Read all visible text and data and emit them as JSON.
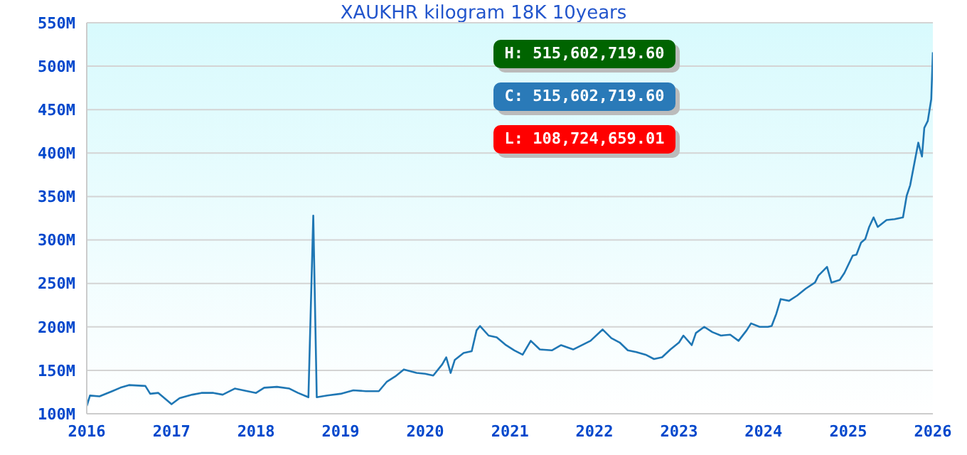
{
  "chart_data": {
    "type": "line",
    "title": "XAUKHR kilogram 18K 10years",
    "annotations": [
      "H: 515,602,719.60",
      "C: 515,602,719.60",
      "L: 108,724,659.01"
    ],
    "x": [
      "2016-01-01",
      "2016-01-15",
      "2016-02-25",
      "2016-04-20",
      "2016-05-25",
      "2016-07-01",
      "2016-09-10",
      "2016-10-01",
      "2016-11-05",
      "2016-12-15",
      "2017-01-01",
      "2017-02-05",
      "2017-04-01",
      "2017-05-10",
      "2017-07-01",
      "2017-08-10",
      "2017-10-01",
      "2017-11-25",
      "2018-01-01",
      "2018-02-05",
      "2018-04-01",
      "2018-05-25",
      "2018-07-01",
      "2018-08-15",
      "2018-09-05",
      "2018-09-20",
      "2018-11-05",
      "2019-01-01",
      "2019-02-25",
      "2019-04-20",
      "2019-06-15",
      "2019-07-20",
      "2019-08-25",
      "2019-10-01",
      "2019-11-25",
      "2020-01-01",
      "2020-02-05",
      "2020-03-15",
      "2020-04-01",
      "2020-04-20",
      "2020-05-08",
      "2020-06-15",
      "2020-07-20",
      "2020-08-10",
      "2020-08-25",
      "2020-10-01",
      "2020-11-05",
      "2020-12-15",
      "2021-01-20",
      "2021-02-25",
      "2021-04-01",
      "2021-05-10",
      "2021-07-01",
      "2021-08-10",
      "2021-10-01",
      "2021-12-15",
      "2022-02-05",
      "2022-03-15",
      "2022-04-20",
      "2022-05-25",
      "2022-07-01",
      "2022-08-10",
      "2022-09-15",
      "2022-10-20",
      "2022-11-25",
      "2023-01-01",
      "2023-01-20",
      "2023-02-25",
      "2023-03-15",
      "2023-04-20",
      "2023-05-25",
      "2023-07-01",
      "2023-08-10",
      "2023-09-15",
      "2023-10-20",
      "2023-11-08",
      "2023-12-15",
      "2024-01-20",
      "2024-02-05",
      "2024-02-25",
      "2024-03-15",
      "2024-04-20",
      "2024-05-25",
      "2024-07-01",
      "2024-08-10",
      "2024-08-25",
      "2024-10-01",
      "2024-10-20",
      "2024-11-25",
      "2024-12-15",
      "2025-01-20",
      "2025-02-05",
      "2025-02-25",
      "2025-03-15",
      "2025-04-01",
      "2025-04-20",
      "2025-05-08",
      "2025-06-15",
      "2025-07-20",
      "2025-08-25",
      "2025-09-10",
      "2025-09-25",
      "2025-10-30",
      "2025-11-15",
      "2025-11-25",
      "2025-12-10",
      "2025-12-25",
      "2026-01-01"
    ],
    "series": [
      {
        "color": "#1f77b4",
        "values": [
          109,
          121,
          120,
          126,
          130,
          133,
          132,
          123,
          124,
          115,
          111,
          118,
          122,
          124,
          124,
          122,
          129,
          126,
          124,
          130,
          131,
          129,
          124,
          119,
          328,
          119,
          121,
          123,
          127,
          126,
          126,
          137,
          143,
          151,
          147,
          146,
          144,
          157,
          165,
          147,
          162,
          170,
          172,
          196,
          201,
          190,
          188,
          179,
          173,
          168,
          184,
          174,
          173,
          179,
          174,
          184,
          197,
          187,
          182,
          173,
          171,
          168,
          163,
          165,
          174,
          182,
          190,
          179,
          193,
          200,
          194,
          190,
          191,
          184,
          196,
          204,
          200,
          200,
          201,
          215,
          232,
          230,
          236,
          244,
          251,
          259,
          269,
          251,
          254,
          262,
          282,
          283,
          297,
          301,
          315,
          326,
          315,
          323,
          324,
          326,
          351,
          363,
          412,
          396,
          429,
          437,
          462,
          516
        ]
      }
    ],
    "xlim": [
      "2016",
      "2026"
    ],
    "xticks": [
      "2016",
      "2017",
      "2018",
      "2019",
      "2020",
      "2021",
      "2022",
      "2023",
      "2024",
      "2025",
      "2026"
    ],
    "ylim": [
      100,
      550
    ],
    "yticks": [
      {
        "value": 100,
        "label": "100M"
      },
      {
        "value": 150,
        "label": "150M"
      },
      {
        "value": 200,
        "label": "200M"
      },
      {
        "value": 250,
        "label": "250M"
      },
      {
        "value": 300,
        "label": "300M"
      },
      {
        "value": 350,
        "label": "350M"
      },
      {
        "value": 400,
        "label": "400M"
      },
      {
        "value": 450,
        "label": "450M"
      },
      {
        "value": 500,
        "label": "500M"
      },
      {
        "value": 550,
        "label": "550M"
      }
    ],
    "grid": "y",
    "marker": "none",
    "line_style": "solid"
  }
}
